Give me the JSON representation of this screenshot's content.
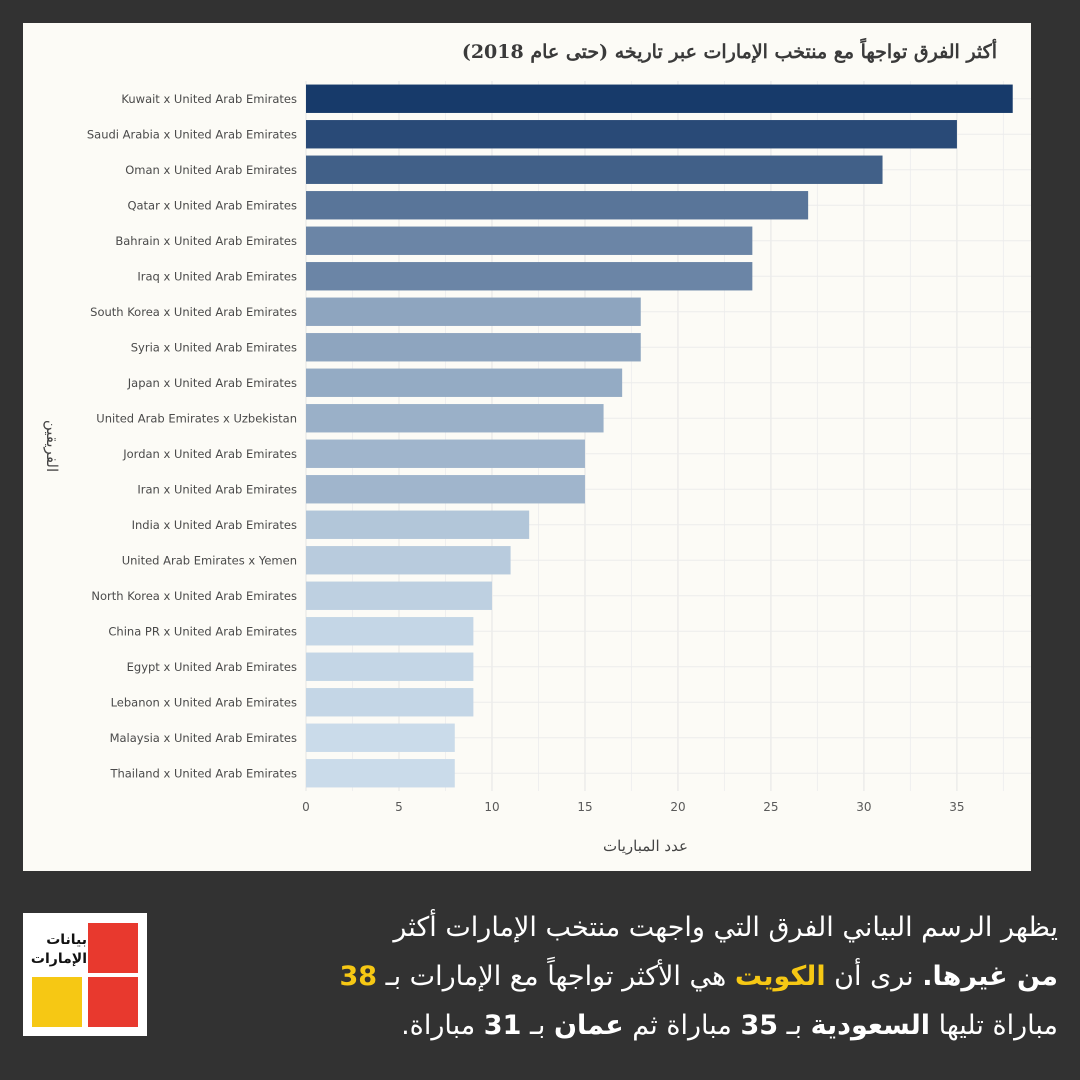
{
  "chart_data": {
    "type": "bar",
    "orientation": "horizontal",
    "title": "أكثر الفرق تواجهاً مع منتخب الإمارات عبر تاريخه (حتى عام 2018)",
    "xlabel": "عدد المباريات",
    "ylabel": "الفريقين",
    "xlim": [
      0,
      40
    ],
    "xticks": [
      0,
      5,
      10,
      15,
      20,
      25,
      30,
      35
    ],
    "grid": true,
    "categories": [
      "Kuwait x United Arab Emirates",
      "Saudi Arabia x United Arab Emirates",
      "Oman x United Arab Emirates",
      "Qatar x United Arab Emirates",
      "Bahrain x United Arab Emirates",
      "Iraq x United Arab Emirates",
      "South Korea x United Arab Emirates",
      "Syria x United Arab Emirates",
      "Japan x United Arab Emirates",
      "United Arab Emirates x Uzbekistan",
      "Jordan x United Arab Emirates",
      "Iran x United Arab Emirates",
      "India x United Arab Emirates",
      "United Arab Emirates x Yemen",
      "North Korea x United Arab Emirates",
      "China PR x United Arab Emirates",
      "Egypt x United Arab Emirates",
      "Lebanon x United Arab Emirates",
      "Malaysia x United Arab Emirates",
      "Thailand x United Arab Emirates"
    ],
    "values": [
      38,
      35,
      31,
      27,
      24,
      24,
      18,
      18,
      17,
      16,
      15,
      15,
      12,
      11,
      10,
      9,
      9,
      9,
      8,
      8
    ],
    "colors": {
      "max": "#173a6a",
      "min": "#cadbea"
    }
  },
  "footer": {
    "line1": "يظهر الرسم البياني الفرق التي واجهت منتخب الإمارات أكثر",
    "line2_a": "من غيرها.",
    "line2_b": " نرى أن ",
    "line2_kuwait": "الكويت",
    "line2_c": " هي الأكثر تواجهاً مع الإمارات بـ ",
    "line2_num": "38",
    "line3_a": "مباراة تليها ",
    "line3_saudi": "السعودية",
    "line3_b": " بـ ",
    "line3_num1": "35",
    "line3_c": " مباراة ثم ",
    "line3_oman": "عمان",
    "line3_d": " بـ ",
    "line3_num2": "31",
    "line3_e": " مباراة."
  },
  "logo": {
    "line1": "بيانات",
    "line2": "الإمارات",
    "colors": {
      "red": "#e8392e",
      "yellow": "#f6c814"
    }
  }
}
